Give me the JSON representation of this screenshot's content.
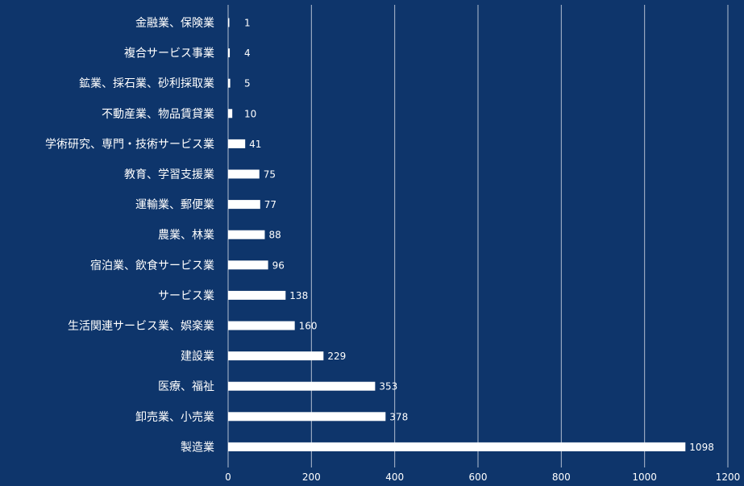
{
  "chart_data": {
    "type": "bar",
    "orientation": "horizontal",
    "categories": [
      "金融業、保険業",
      "複合サービス事業",
      "鉱業、採石業、砂利採取業",
      "不動産業、物品賃貸業",
      "学術研究、専門・技術サービス業",
      "教育、学習支援業",
      "運輸業、郵便業",
      "農業、林業",
      "宿泊業、飲食サービス業",
      "サービス業",
      "生活関連サービス業、娯楽業",
      "建設業",
      "医療、福祉",
      "卸売業、小売業",
      "製造業"
    ],
    "values": [
      1,
      4,
      5,
      10,
      41,
      75,
      77,
      88,
      96,
      138,
      160,
      229,
      353,
      378,
      1098
    ],
    "value_labels": [
      "1",
      "4",
      "5",
      "10",
      "41",
      "75",
      "77",
      "88",
      "96",
      "138",
      "160",
      "229",
      "353",
      "378",
      "1098"
    ],
    "xlim": [
      0,
      1200
    ],
    "x_ticks": [
      0,
      200,
      400,
      600,
      800,
      1000,
      1200
    ],
    "x_tick_labels": [
      "0",
      "200",
      "400",
      "600",
      "800",
      "1000",
      "1200"
    ],
    "grid": "vertical",
    "legend": "none",
    "colors": {
      "background": "#0e356b",
      "bar": "#ffffff",
      "text": "#ffffff",
      "grid": "#cfd6e2"
    }
  }
}
